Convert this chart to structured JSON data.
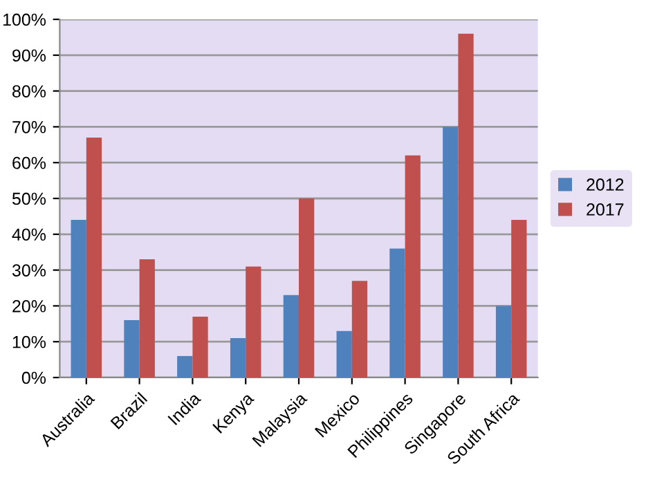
{
  "chart_data": {
    "type": "bar",
    "categories": [
      "Australia",
      "Brazil",
      "India",
      "Kenya",
      "Malaysia",
      "Mexico",
      "Philippines",
      "Singapore",
      "South Africa"
    ],
    "series": [
      {
        "name": "2012",
        "color": "#4f81bd",
        "values": [
          44,
          16,
          6,
          11,
          23,
          13,
          36,
          70,
          20
        ]
      },
      {
        "name": "2017",
        "color": "#c0504d",
        "values": [
          67,
          33,
          17,
          31,
          50,
          27,
          62,
          96,
          44
        ]
      }
    ],
    "ylim": [
      0,
      100
    ],
    "yticks": [
      {
        "value": 0,
        "label": "0%"
      },
      {
        "value": 10,
        "label": "10%"
      },
      {
        "value": 20,
        "label": "20%"
      },
      {
        "value": 30,
        "label": "30%"
      },
      {
        "value": 40,
        "label": "40%"
      },
      {
        "value": 50,
        "label": "50%"
      },
      {
        "value": 60,
        "label": "60%"
      },
      {
        "value": 70,
        "label": "70%"
      },
      {
        "value": 80,
        "label": "80%"
      },
      {
        "value": 90,
        "label": "90%"
      },
      {
        "value": 100,
        "label": "100%"
      }
    ],
    "grid": "y",
    "legend": "right"
  }
}
